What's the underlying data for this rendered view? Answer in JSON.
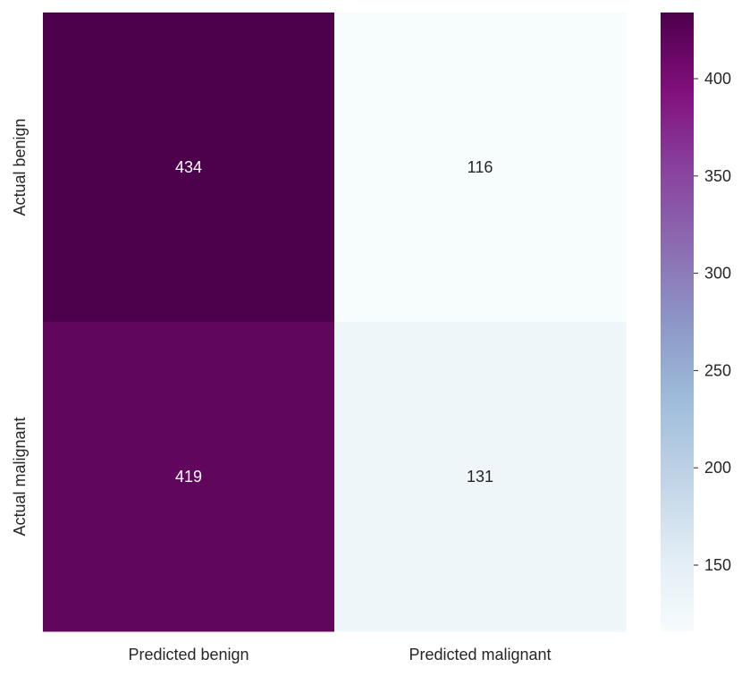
{
  "chart_data": {
    "type": "heatmap",
    "title": "",
    "x_categories": [
      "Predicted benign",
      "Predicted malignant"
    ],
    "y_categories": [
      "Actual benign",
      "Actual malignant"
    ],
    "values": [
      [
        434,
        116
      ],
      [
        419,
        131
      ]
    ],
    "colormap": "BuPu",
    "colorbar": {
      "min": 116,
      "max": 434,
      "ticks": [
        150,
        200,
        250,
        300,
        350,
        400
      ],
      "tick_labels": [
        "150",
        "200",
        "250",
        "300",
        "350",
        "400"
      ]
    },
    "grid": false
  }
}
